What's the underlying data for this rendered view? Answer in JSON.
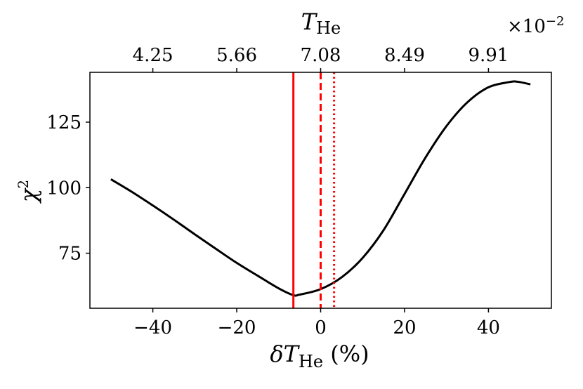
{
  "chart_data": {
    "type": "line",
    "xlabel": {
      "prefix": "δ",
      "var": "T",
      "sub": "He",
      "suffix": " (%)"
    },
    "ylabel": {
      "var": "χ",
      "sup": "2"
    },
    "top_xlabel": {
      "var": "T",
      "sub": "He"
    },
    "top_multiplier": {
      "base": "×10",
      "exp": "−2"
    },
    "xlim": [
      -55,
      55
    ],
    "ylim": [
      54,
      144
    ],
    "xticks": [
      -40,
      -20,
      0,
      20,
      40
    ],
    "xtick_labels": [
      "−40",
      "−20",
      "0",
      "20",
      "40"
    ],
    "yticks": [
      75,
      100,
      125
    ],
    "ytick_labels": [
      "75",
      "100",
      "125"
    ],
    "top_xticks": [
      -40,
      -20,
      0,
      20,
      40
    ],
    "top_xtick_labels": [
      "4.25",
      "5.66",
      "7.08",
      "8.49",
      "9.91"
    ],
    "grid": false,
    "series": [
      {
        "color": "#000000",
        "x": [
          -50,
          -45,
          -40,
          -35,
          -30,
          -25,
          -20,
          -15,
          -10,
          -6.5,
          -5,
          0,
          5,
          10,
          15,
          20,
          25,
          30,
          35,
          40,
          45,
          47,
          50
        ],
        "y": [
          103.2,
          98.4,
          93.2,
          87.8,
          82.2,
          76.7,
          71.3,
          66.4,
          61.6,
          59.0,
          59.2,
          61.3,
          65.8,
          73.2,
          83.8,
          97.6,
          111.5,
          123.5,
          132.6,
          138.3,
          140.3,
          140.4,
          139.4
        ]
      }
    ],
    "vlines": [
      {
        "x": -6.5,
        "style": "solid",
        "color": "#ff0000"
      },
      {
        "x": 0,
        "style": "dashed",
        "color": "#ff0000"
      },
      {
        "x": 3.2,
        "style": "dotted",
        "color": "#ff0000"
      }
    ]
  }
}
